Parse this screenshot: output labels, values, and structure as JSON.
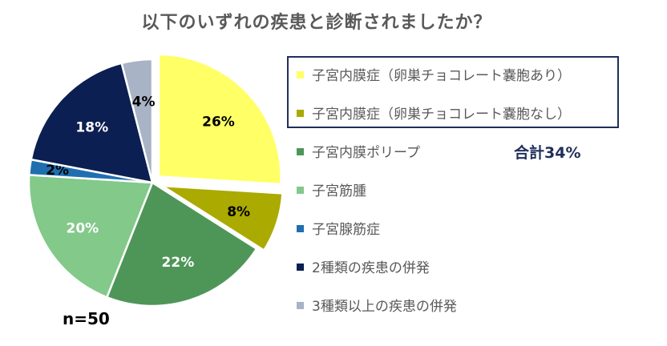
{
  "title": "以下のいずれの疾患と診断されましたか？",
  "n_label": "n=50",
  "total_label": "合計34%",
  "chart_data": {
    "type": "pie",
    "title": "以下のいずれの疾患と診断されましたか？",
    "legend_position": "right",
    "slices": [
      {
        "label": "子宮内膜症（卵巣チョコレート嚢胞あり）",
        "value": 26,
        "display": "26%",
        "color": "#ffff66",
        "exploded": true,
        "label_color": "#000000"
      },
      {
        "label": "子宮内膜症（卵巣チョコレート嚢胞なし）",
        "value": 8,
        "display": "8%",
        "color": "#aaaa00",
        "exploded": true,
        "label_color": "#000000"
      },
      {
        "label": "子宮内膜ポリープ",
        "value": 22,
        "display": "22%",
        "color": "#4e9658",
        "exploded": false,
        "label_color": "#ffffff"
      },
      {
        "label": "子宮筋腫",
        "value": 20,
        "display": "20%",
        "color": "#82c98a",
        "exploded": false,
        "label_color": "#ffffff"
      },
      {
        "label": "子宮腺筋症",
        "value": 2,
        "display": "2%",
        "color": "#1f6fb0",
        "exploded": false,
        "label_color": "#000000"
      },
      {
        "label": "2種類の疾患の併発",
        "value": 18,
        "display": "18%",
        "color": "#0c1f52",
        "exploded": false,
        "label_color": "#ffffff"
      },
      {
        "label": "3種類以上の疾患の併発",
        "value": 4,
        "display": "4%",
        "color": "#a9b3c6",
        "exploded": false,
        "label_color": "#000000"
      }
    ]
  }
}
